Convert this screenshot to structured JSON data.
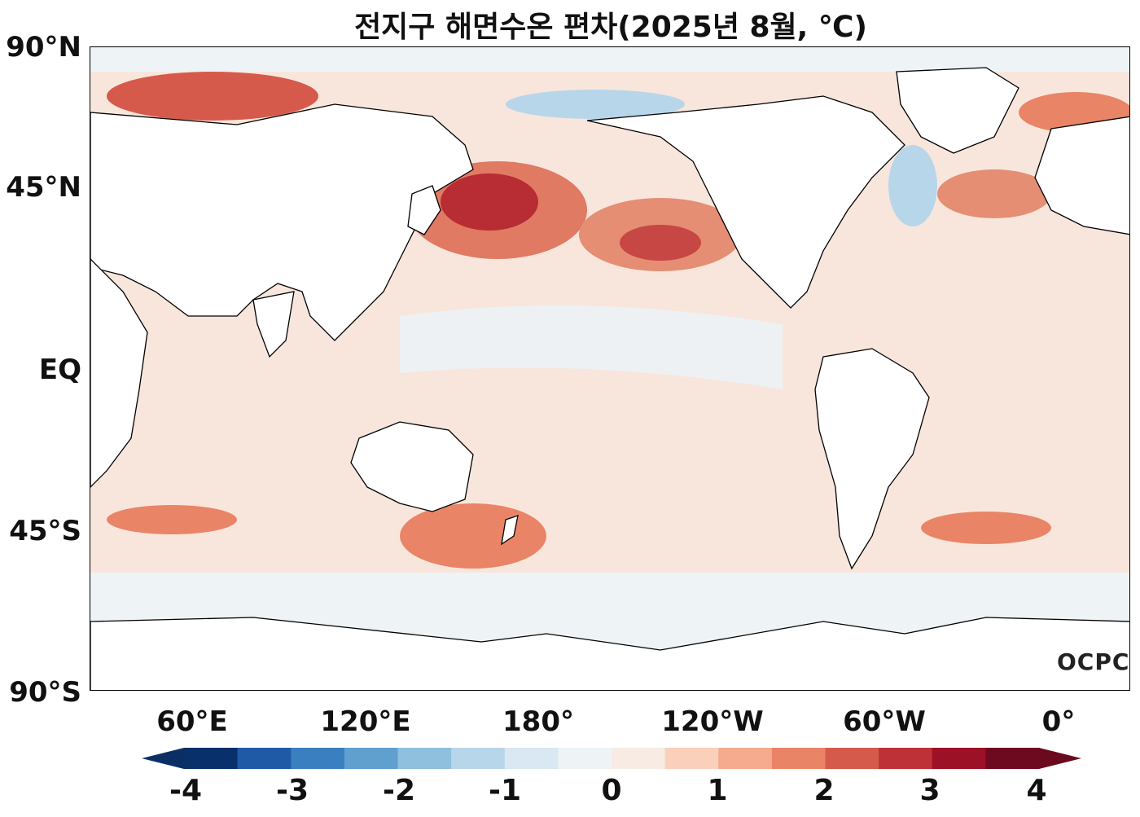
{
  "title": "전지구 해면수온 편차(2025년 8월, ℃)",
  "y_axis_labels": [
    "90°N",
    "45°N",
    "EQ",
    "45°S",
    "90°S"
  ],
  "x_axis_labels": [
    "60°E",
    "120°E",
    "180°",
    "120°W",
    "60°W",
    "0°"
  ],
  "colorbar": {
    "tick_labels": [
      "-4",
      "-3",
      "-2",
      "-1",
      "0",
      "1",
      "2",
      "3",
      "4"
    ],
    "colors": [
      "#08306b",
      "#1f5aa6",
      "#3a7fbf",
      "#5fa0cf",
      "#8fc0de",
      "#b8d6ea",
      "#d9e8f2",
      "#eef3f6",
      "#f7ebe4",
      "#fbd0bb",
      "#f6ab8e",
      "#ea8467",
      "#d65a4b",
      "#be3136",
      "#9d1126",
      "#6e0a1f"
    ],
    "under_color": "#0b2f64",
    "over_color": "#6b0a1e"
  },
  "logo": "OCPC",
  "map": {
    "ocean_base_color": "#f7e3d8",
    "land_color": "#ffffff",
    "sea_ice_color": "#eef3f6"
  }
}
